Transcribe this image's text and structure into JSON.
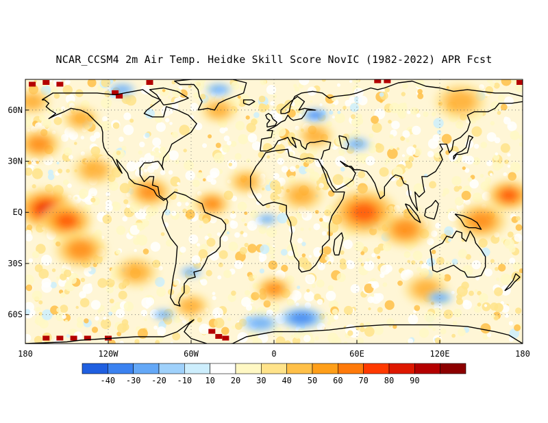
{
  "title": "NCAR_CCSM4 2m Air Temp. Heidke Skill Score NovIC (1982-2022) APR Fcst",
  "map": {
    "lat_labels": [
      "60N",
      "30N",
      "EQ",
      "30S",
      "60S"
    ],
    "lat_values": [
      60,
      30,
      0,
      -30,
      -60
    ],
    "lon_labels": [
      "180",
      "120W",
      "60W",
      "0",
      "60E",
      "120E",
      "180"
    ],
    "lon_values": [
      -180,
      -120,
      -60,
      0,
      60,
      120,
      180
    ],
    "lon_range": [
      -180,
      180
    ],
    "lat_range": [
      -77,
      78
    ],
    "grid": "dotted"
  },
  "colorbar": {
    "tick_labels": [
      "-40",
      "-30",
      "-20",
      "-10",
      "10",
      "20",
      "30",
      "40",
      "50",
      "60",
      "70",
      "80",
      "90"
    ],
    "colors": [
      "#1f5fe0",
      "#3b82f0",
      "#64a8f7",
      "#9fd1fb",
      "#cdeefd",
      "#ffffff",
      "#fff8c4",
      "#ffe38a",
      "#ffc048",
      "#ff9f19",
      "#ff7a0a",
      "#ff3a00",
      "#de1800",
      "#b40000",
      "#8c0000"
    ]
  },
  "hotspots": {
    "warm": [
      {
        "lon": -165,
        "lat": 2,
        "r": 16,
        "level": 5
      },
      {
        "lon": -150,
        "lat": -5,
        "r": 14,
        "level": 4
      },
      {
        "lon": -170,
        "lat": 40,
        "r": 12,
        "level": 3
      },
      {
        "lon": -130,
        "lat": 25,
        "r": 12,
        "level": 2
      },
      {
        "lon": -140,
        "lat": -22,
        "r": 14,
        "level": 3
      },
      {
        "lon": -90,
        "lat": 12,
        "r": 12,
        "level": 3
      },
      {
        "lon": -45,
        "lat": 5,
        "r": 10,
        "level": 3
      },
      {
        "lon": -20,
        "lat": 18,
        "r": 10,
        "level": 2
      },
      {
        "lon": 20,
        "lat": 10,
        "r": 12,
        "level": 2
      },
      {
        "lon": 65,
        "lat": 0,
        "r": 18,
        "level": 4
      },
      {
        "lon": 95,
        "lat": -10,
        "r": 14,
        "level": 3
      },
      {
        "lon": 150,
        "lat": -5,
        "r": 14,
        "level": 3
      },
      {
        "lon": 170,
        "lat": 10,
        "r": 12,
        "level": 4
      },
      {
        "lon": -100,
        "lat": -35,
        "r": 12,
        "level": 2
      },
      {
        "lon": 0,
        "lat": -45,
        "r": 10,
        "level": 3
      },
      {
        "lon": -60,
        "lat": -55,
        "r": 10,
        "level": 2
      },
      {
        "lon": 110,
        "lat": -45,
        "r": 12,
        "level": 2
      },
      {
        "lon": -40,
        "lat": 60,
        "r": 10,
        "level": 2
      },
      {
        "lon": 30,
        "lat": 45,
        "r": 10,
        "level": 2
      },
      {
        "lon": 135,
        "lat": 65,
        "r": 14,
        "level": 2
      },
      {
        "lon": -140,
        "lat": 55,
        "r": 10,
        "level": 2
      },
      {
        "lon": -175,
        "lat": 65,
        "r": 10,
        "level": 2
      }
    ],
    "cool": [
      {
        "lon": 30,
        "lat": 57,
        "r": 6,
        "level": 2
      },
      {
        "lon": 60,
        "lat": 40,
        "r": 6,
        "level": 1
      },
      {
        "lon": -5,
        "lat": -4,
        "r": 5,
        "level": 1
      },
      {
        "lon": 20,
        "lat": -62,
        "r": 10,
        "level": 2
      },
      {
        "lon": -10,
        "lat": -65,
        "r": 8,
        "level": 1
      },
      {
        "lon": -60,
        "lat": -35,
        "r": 5,
        "level": 1
      },
      {
        "lon": -40,
        "lat": 72,
        "r": 6,
        "level": 1
      },
      {
        "lon": -110,
        "lat": 72,
        "r": 6,
        "level": 1
      },
      {
        "lon": 120,
        "lat": -50,
        "r": 6,
        "level": 1
      },
      {
        "lon": -80,
        "lat": -60,
        "r": 5,
        "level": 1
      }
    ],
    "extreme": [
      {
        "lon": -175,
        "lat": 75
      },
      {
        "lon": -165,
        "lat": 76
      },
      {
        "lon": -155,
        "lat": 75
      },
      {
        "lon": -90,
        "lat": 76
      },
      {
        "lon": -115,
        "lat": 70
      },
      {
        "lon": -112,
        "lat": 68
      },
      {
        "lon": 75,
        "lat": 77
      },
      {
        "lon": 82,
        "lat": 77
      },
      {
        "lon": 178,
        "lat": 76
      },
      {
        "lon": -165,
        "lat": -74
      },
      {
        "lon": -155,
        "lat": -74
      },
      {
        "lon": -145,
        "lat": -74
      },
      {
        "lon": -135,
        "lat": -74
      },
      {
        "lon": -120,
        "lat": -74
      },
      {
        "lon": -45,
        "lat": -70
      },
      {
        "lon": -40,
        "lat": -73
      },
      {
        "lon": -35,
        "lat": -74
      }
    ]
  }
}
